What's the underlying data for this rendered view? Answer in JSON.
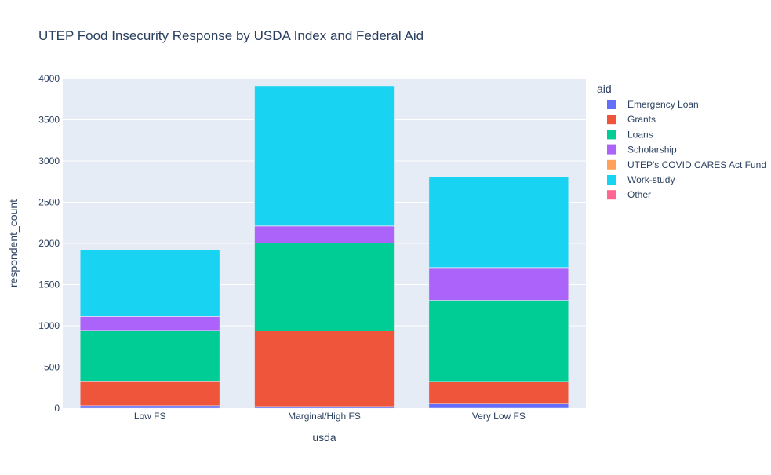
{
  "chart_data": {
    "type": "bar",
    "barmode": "stack",
    "title": "UTEP Food Insecurity Response by USDA Index and Federal Aid",
    "xlabel": "usda",
    "ylabel": "respondent_count",
    "categories": [
      "Low FS",
      "Marginal/High FS",
      "Very Low FS"
    ],
    "ylim": [
      0,
      4000
    ],
    "yticks": [
      0,
      500,
      1000,
      1500,
      2000,
      2500,
      3000,
      3500,
      4000
    ],
    "grid": true,
    "legend": {
      "title": "aid",
      "position": "right"
    },
    "series": [
      {
        "name": "Emergency Loan",
        "color": "#636efa",
        "values": [
          30,
          20,
          60
        ]
      },
      {
        "name": "Grants",
        "color": "#EF553B",
        "values": [
          300,
          920,
          265
        ]
      },
      {
        "name": "Loans",
        "color": "#00cc96",
        "values": [
          615,
          1065,
          985
        ]
      },
      {
        "name": "Scholarship",
        "color": "#ab63fa",
        "values": [
          165,
          205,
          395
        ]
      },
      {
        "name": "UTEP's COVID CARES Act Fund",
        "color": "#FFA15A",
        "values": [
          3,
          3,
          3
        ]
      },
      {
        "name": "Work-study",
        "color": "#19d3f3",
        "values": [
          807,
          1692,
          1097
        ]
      },
      {
        "name": "Other",
        "color": "#FF6692",
        "values": [
          0,
          0,
          0
        ]
      }
    ]
  }
}
